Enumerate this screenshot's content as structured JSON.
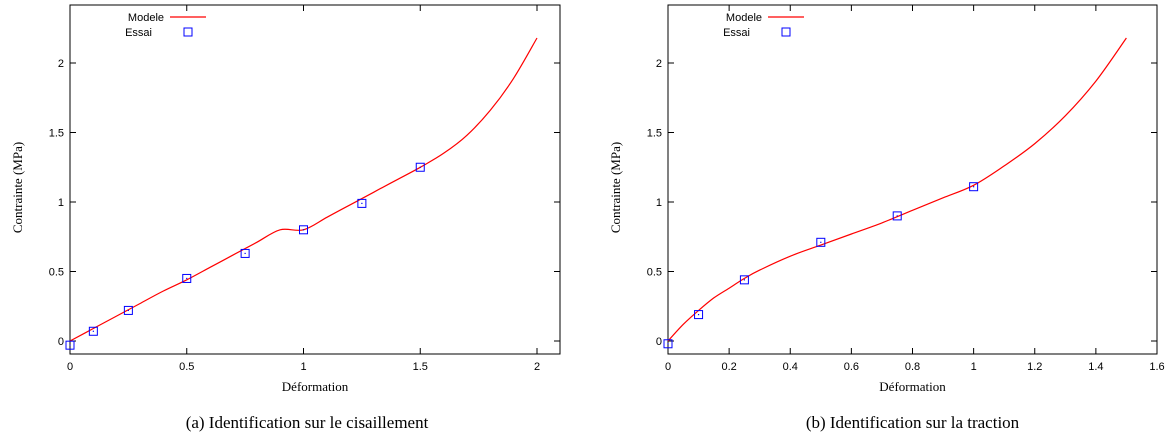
{
  "chart_data": [
    {
      "type": "line",
      "caption": "(a)  Identification sur le cisaillement",
      "xlabel": "Déformation",
      "ylabel": "Contrainte (MPa)",
      "xlim": [
        0,
        2.05
      ],
      "ylim": [
        -0.05,
        2.35
      ],
      "xticks": [
        0,
        0.5,
        1,
        1.5,
        2
      ],
      "xtick_labels": [
        "0",
        "0.5",
        "1",
        "1.5",
        "2"
      ],
      "yticks": [
        0,
        0.5,
        1,
        1.5,
        2
      ],
      "ytick_labels": [
        "0",
        "0.5",
        "1",
        "1.5",
        "2"
      ],
      "legend_position": "top-left",
      "series": [
        {
          "name": "Modele",
          "kind": "line",
          "color": "#ff0000",
          "x": [
            0,
            0.1,
            0.2,
            0.3,
            0.4,
            0.5,
            0.6,
            0.7,
            0.8,
            0.9,
            1.0,
            1.1,
            1.2,
            1.3,
            1.4,
            1.5,
            1.6,
            1.7,
            1.8,
            1.9,
            2.0
          ],
          "y": [
            0.0,
            0.09,
            0.18,
            0.27,
            0.36,
            0.44,
            0.53,
            0.62,
            0.71,
            0.8,
            0.8,
            0.89,
            0.98,
            1.07,
            1.16,
            1.25,
            1.35,
            1.48,
            1.66,
            1.89,
            2.18
          ]
        },
        {
          "name": "Essai",
          "kind": "scatter",
          "color": "#0000ff",
          "x": [
            0,
            0.1,
            0.25,
            0.5,
            0.75,
            1.0,
            1.25,
            1.5
          ],
          "y": [
            -0.03,
            0.07,
            0.22,
            0.45,
            0.63,
            0.8,
            0.99,
            1.25
          ]
        }
      ]
    },
    {
      "type": "line",
      "caption": "(b)  Identification sur la traction",
      "xlabel": "Déformation",
      "ylabel": "Contrainte (MPa)",
      "xlim": [
        0,
        1.6
      ],
      "ylim": [
        -0.05,
        2.35
      ],
      "xticks": [
        0,
        0.2,
        0.4,
        0.6,
        0.8,
        1.0,
        1.2,
        1.4,
        1.6
      ],
      "xtick_labels": [
        "0",
        "0.2",
        "0.4",
        "0.6",
        "0.8",
        "1",
        "1.2",
        "1.4",
        "1.6"
      ],
      "yticks": [
        0,
        0.5,
        1,
        1.5,
        2
      ],
      "ytick_labels": [
        "0",
        "0.5",
        "1",
        "1.5",
        "2"
      ],
      "legend_position": "top-left",
      "series": [
        {
          "name": "Modele",
          "kind": "line",
          "color": "#ff0000",
          "x": [
            0,
            0.05,
            0.1,
            0.15,
            0.2,
            0.25,
            0.3,
            0.4,
            0.5,
            0.6,
            0.7,
            0.8,
            0.9,
            1.0,
            1.1,
            1.2,
            1.3,
            1.4,
            1.5
          ],
          "y": [
            0.0,
            0.12,
            0.22,
            0.31,
            0.38,
            0.45,
            0.51,
            0.61,
            0.69,
            0.77,
            0.85,
            0.94,
            1.03,
            1.12,
            1.26,
            1.42,
            1.62,
            1.87,
            2.18
          ]
        },
        {
          "name": "Essai",
          "kind": "scatter",
          "color": "#0000ff",
          "x": [
            0,
            0.1,
            0.25,
            0.5,
            0.75,
            1.0
          ],
          "y": [
            -0.02,
            0.19,
            0.44,
            0.71,
            0.9,
            1.11
          ]
        }
      ]
    }
  ]
}
